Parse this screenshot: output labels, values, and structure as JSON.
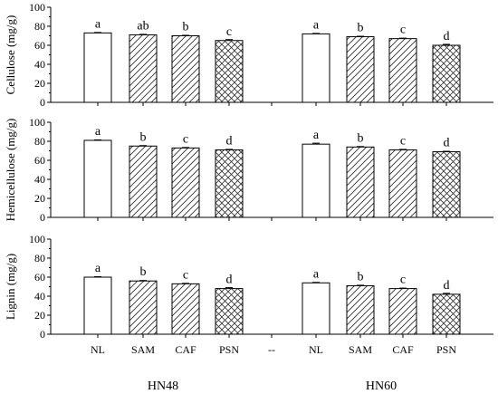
{
  "chart_data": {
    "type": "bar",
    "panels": [
      {
        "ylabel": "Cellulose (mg/g)",
        "ylim": [
          0,
          100
        ],
        "yticks": [
          "0",
          "20",
          "40",
          "60",
          "80",
          "100"
        ],
        "groups": [
          {
            "name": "HN48",
            "values": [
              73,
              71,
              70,
              65
            ],
            "errors": [
              0.5,
              0.5,
              0.5,
              1.0
            ],
            "letters": [
              "a",
              "ab",
              "b",
              "c"
            ]
          },
          {
            "name": "HN60",
            "values": [
              72,
              69,
              67,
              60
            ],
            "errors": [
              0.5,
              0.5,
              0.5,
              1.0
            ],
            "letters": [
              "a",
              "b",
              "c",
              "d"
            ]
          }
        ]
      },
      {
        "ylabel": "Hemicellulose (mg/g)",
        "ylim": [
          0,
          100
        ],
        "yticks": [
          "0",
          "20",
          "40",
          "60",
          "80",
          "100"
        ],
        "groups": [
          {
            "name": "HN48",
            "values": [
              81,
              75,
              73,
              71
            ],
            "errors": [
              0.5,
              0.5,
              0.5,
              0.5
            ],
            "letters": [
              "a",
              "b",
              "c",
              "d"
            ]
          },
          {
            "name": "HN60",
            "values": [
              77,
              74,
              71,
              69
            ],
            "errors": [
              1.0,
              0.5,
              0.5,
              0.5
            ],
            "letters": [
              "a",
              "b",
              "c",
              "d"
            ]
          }
        ]
      },
      {
        "ylabel": "Lignin (mg/g)",
        "ylim": [
          0,
          100
        ],
        "yticks": [
          "0",
          "20",
          "40",
          "60",
          "80",
          "100"
        ],
        "groups": [
          {
            "name": "HN48",
            "values": [
              60,
              56,
              53,
              48
            ],
            "errors": [
              0.5,
              0.5,
              0.5,
              1.0
            ],
            "letters": [
              "a",
              "b",
              "c",
              "d"
            ]
          },
          {
            "name": "HN60",
            "values": [
              54,
              51,
              48,
              42
            ],
            "errors": [
              0.5,
              0.5,
              0.5,
              1.0
            ],
            "letters": [
              "a",
              "b",
              "c",
              "d"
            ]
          }
        ]
      }
    ],
    "categories": [
      "NL",
      "SAM",
      "CAF",
      "PSN",
      "--",
      "NL",
      "SAM",
      "CAF",
      "PSN"
    ],
    "group_labels": [
      "HN48",
      "HN60"
    ],
    "patterns": [
      "none",
      "diagonal-lines",
      "diagonal-lines",
      "crosshatch"
    ]
  }
}
